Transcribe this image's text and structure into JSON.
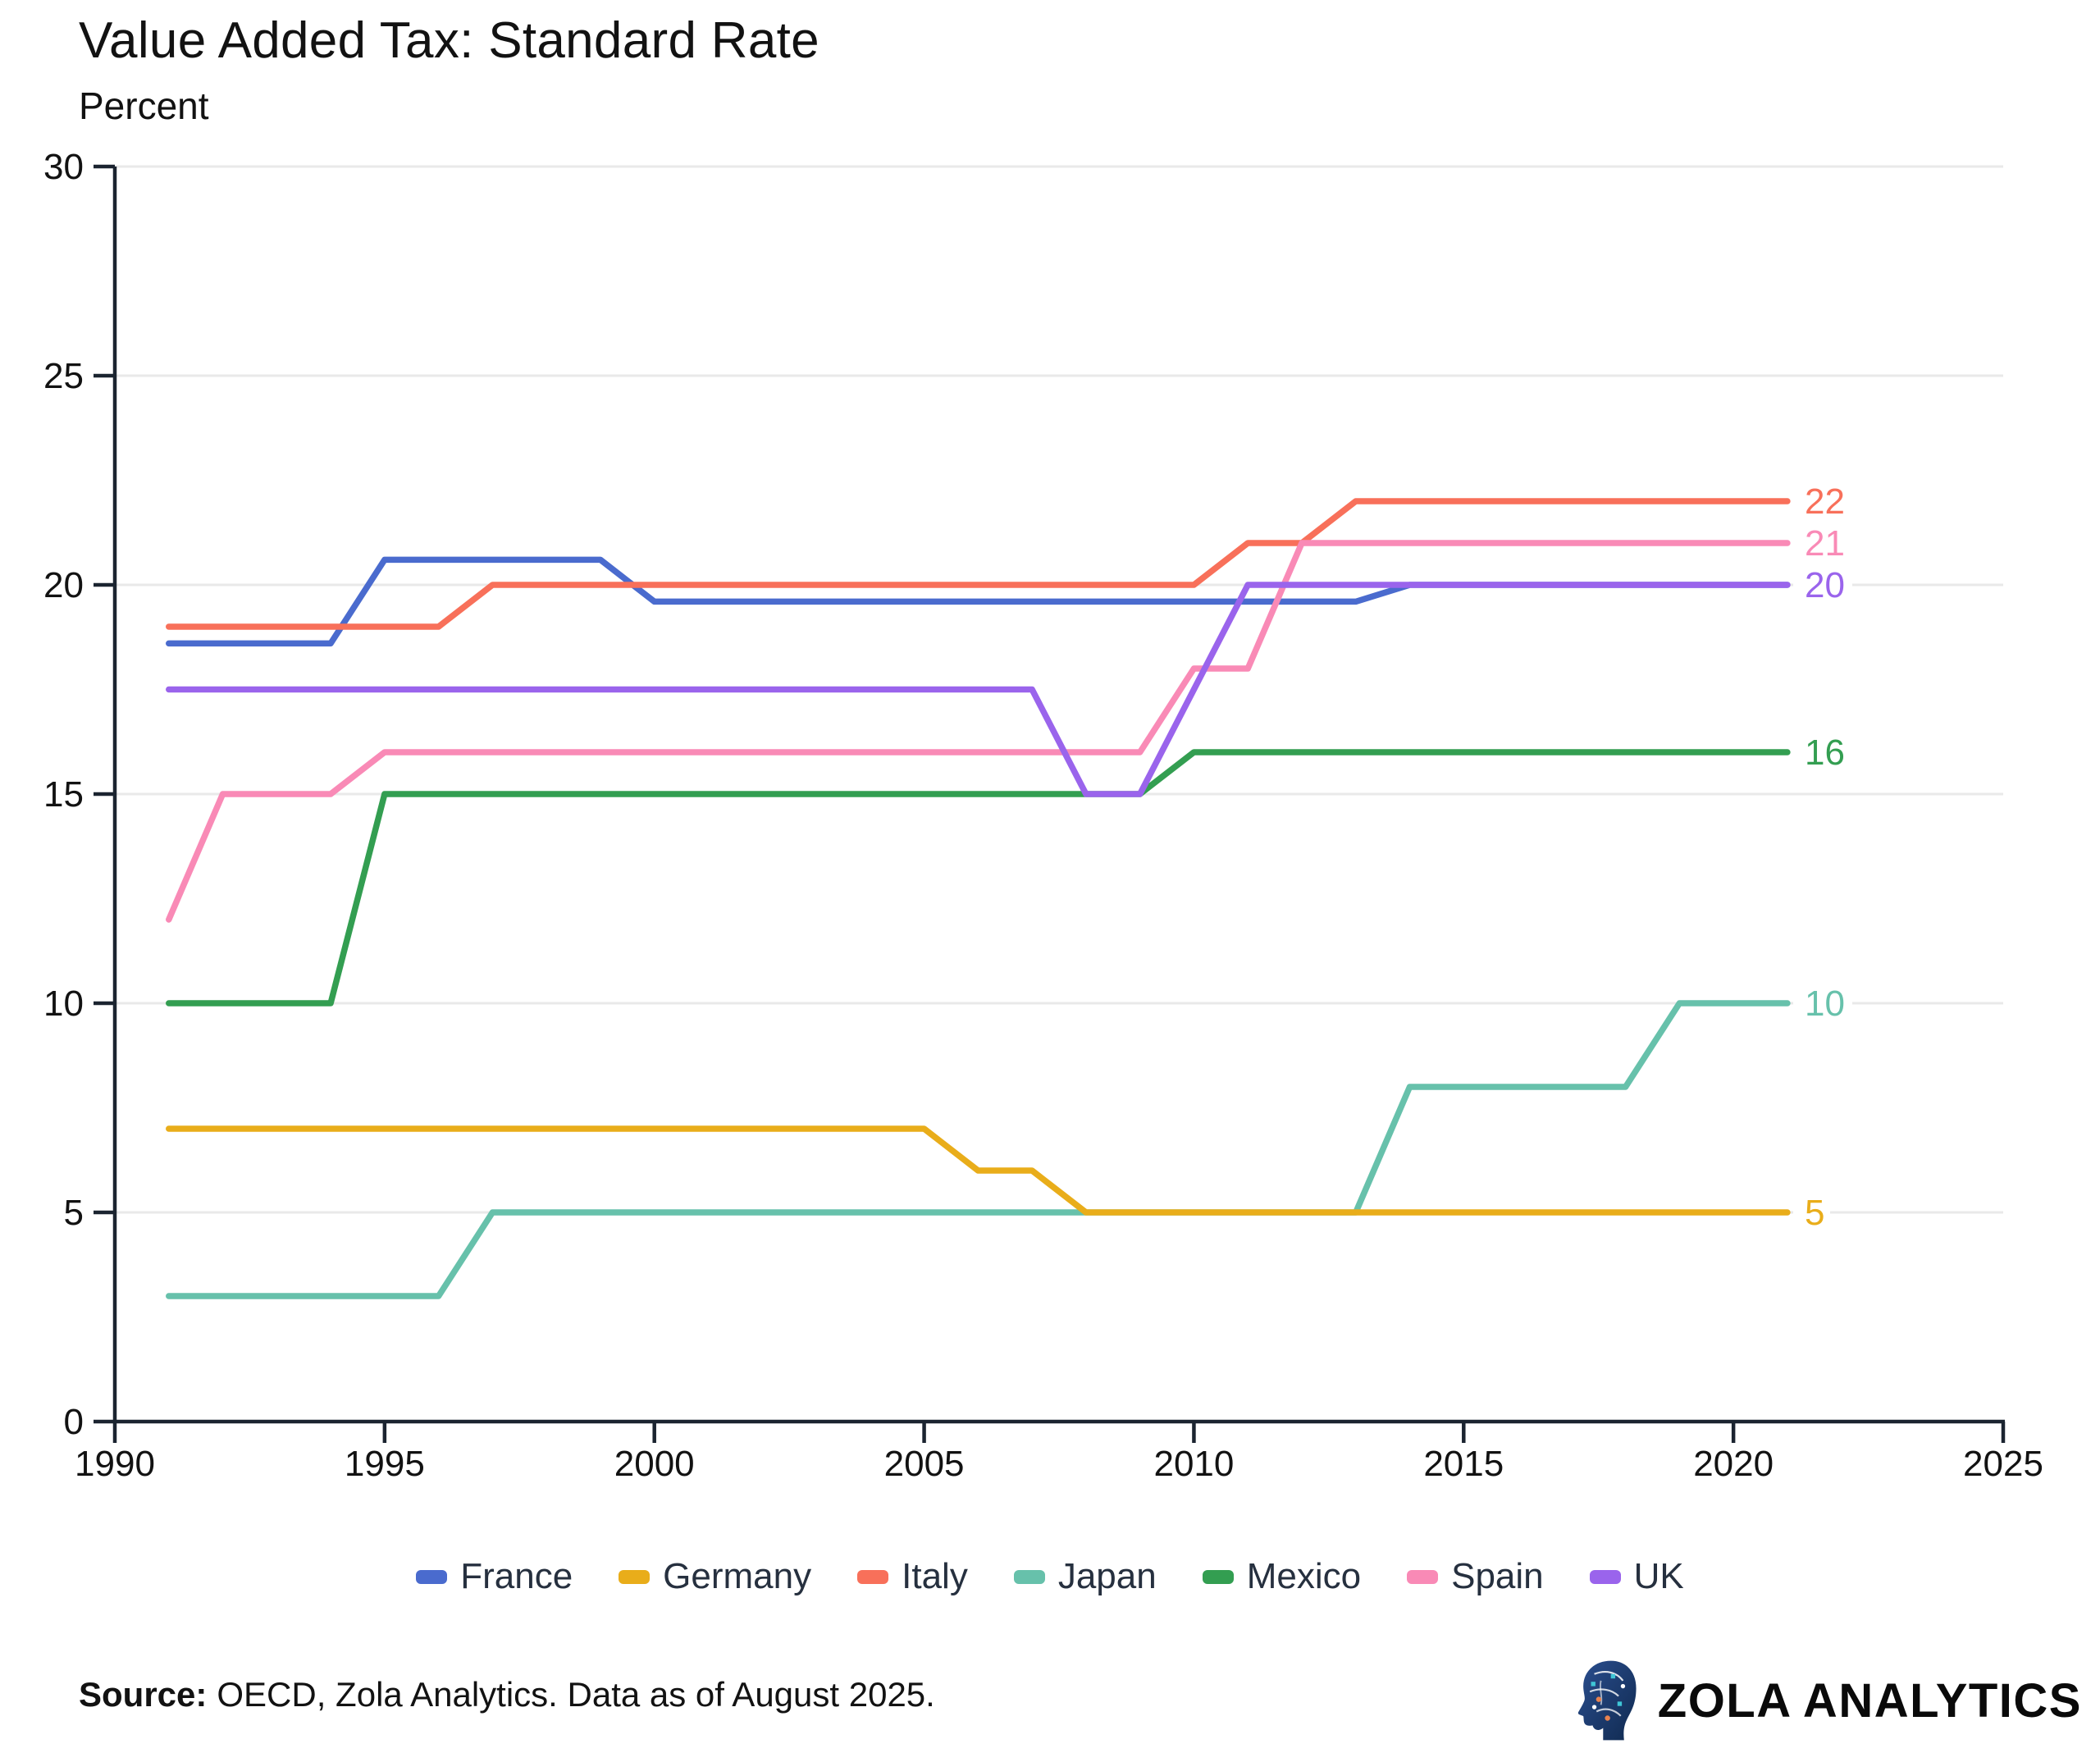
{
  "page": {
    "title": "Value Added Tax: Standard Rate",
    "subtitle": "Percent"
  },
  "source": {
    "label": "Source:",
    "text": "OECD, Zola Analytics. Data as of August 2025."
  },
  "branding": {
    "name": "ZOLA ANALYTICS",
    "logo_icon": "brain-circuit-head-icon",
    "logo_colors": {
      "head": "#1d3e6e",
      "head_dark": "#102a50",
      "trace": "#ffffff",
      "accent_teal": "#3fc6d6",
      "accent_orange": "#e8824f"
    }
  },
  "colors": {
    "axis": "#1b2430",
    "grid": "#e9e9e9",
    "tick_text": "#121212",
    "legend_text": "#26303f",
    "background": "#ffffff"
  },
  "chart_data": {
    "type": "line",
    "title": "Value Added Tax: Standard Rate",
    "ylabel": "Percent",
    "xlabel": "",
    "grid": "horizontal",
    "legend_position": "bottom",
    "xlim": [
      1990,
      2025
    ],
    "ylim": [
      0,
      30
    ],
    "xticks": [
      1990,
      1995,
      2000,
      2005,
      2010,
      2015,
      2020,
      2025
    ],
    "yticks": [
      0,
      5,
      10,
      15,
      20,
      25,
      30
    ],
    "x": [
      1991,
      1992,
      1993,
      1994,
      1995,
      1996,
      1997,
      1998,
      1999,
      2000,
      2001,
      2002,
      2003,
      2004,
      2005,
      2006,
      2007,
      2008,
      2009,
      2010,
      2011,
      2012,
      2013,
      2014,
      2015,
      2016,
      2017,
      2018,
      2019,
      2020,
      2021
    ],
    "draw_order": [
      "France",
      "Italy",
      "Japan",
      "Mexico",
      "Spain",
      "UK",
      "Germany"
    ],
    "series": [
      {
        "name": "France",
        "color": "#4a6bce",
        "end_label": null,
        "values": [
          18.6,
          18.6,
          18.6,
          18.6,
          20.6,
          20.6,
          20.6,
          20.6,
          20.6,
          19.6,
          19.6,
          19.6,
          19.6,
          19.6,
          19.6,
          19.6,
          19.6,
          19.6,
          19.6,
          19.6,
          19.6,
          19.6,
          19.6,
          20,
          20,
          20,
          20,
          20,
          20,
          20,
          20
        ]
      },
      {
        "name": "Germany",
        "color": "#e9ad1a",
        "end_label": "5",
        "values": [
          7,
          7,
          7,
          7,
          7,
          7,
          7,
          7,
          7,
          7,
          7,
          7,
          7,
          7,
          7,
          6,
          6,
          5,
          5,
          5,
          5,
          5,
          5,
          5,
          5,
          5,
          5,
          5,
          5,
          5,
          5
        ]
      },
      {
        "name": "Italy",
        "color": "#f8705a",
        "end_label": "22",
        "values": [
          19,
          19,
          19,
          19,
          19,
          19,
          20,
          20,
          20,
          20,
          20,
          20,
          20,
          20,
          20,
          20,
          20,
          20,
          20,
          20,
          21,
          21,
          22,
          22,
          22,
          22,
          22,
          22,
          22,
          22,
          22
        ]
      },
      {
        "name": "Japan",
        "color": "#67c1ab",
        "end_label": "10",
        "values": [
          3,
          3,
          3,
          3,
          3,
          3,
          5,
          5,
          5,
          5,
          5,
          5,
          5,
          5,
          5,
          5,
          5,
          5,
          5,
          5,
          5,
          5,
          5,
          8,
          8,
          8,
          8,
          8,
          10,
          10,
          10
        ]
      },
      {
        "name": "Mexico",
        "color": "#339e51",
        "end_label": "16",
        "values": [
          10,
          10,
          10,
          10,
          15,
          15,
          15,
          15,
          15,
          15,
          15,
          15,
          15,
          15,
          15,
          15,
          15,
          15,
          15,
          16,
          16,
          16,
          16,
          16,
          16,
          16,
          16,
          16,
          16,
          16,
          16
        ]
      },
      {
        "name": "Spain",
        "color": "#f98ab6",
        "end_label": "21",
        "values": [
          12,
          15,
          15,
          15,
          16,
          16,
          16,
          16,
          16,
          16,
          16,
          16,
          16,
          16,
          16,
          16,
          16,
          16,
          16,
          18,
          18,
          21,
          21,
          21,
          21,
          21,
          21,
          21,
          21,
          21,
          21
        ]
      },
      {
        "name": "UK",
        "color": "#9a64ec",
        "end_label": "20",
        "values": [
          17.5,
          17.5,
          17.5,
          17.5,
          17.5,
          17.5,
          17.5,
          17.5,
          17.5,
          17.5,
          17.5,
          17.5,
          17.5,
          17.5,
          17.5,
          17.5,
          17.5,
          15,
          15,
          17.5,
          20,
          20,
          20,
          20,
          20,
          20,
          20,
          20,
          20,
          20,
          20
        ]
      }
    ]
  }
}
